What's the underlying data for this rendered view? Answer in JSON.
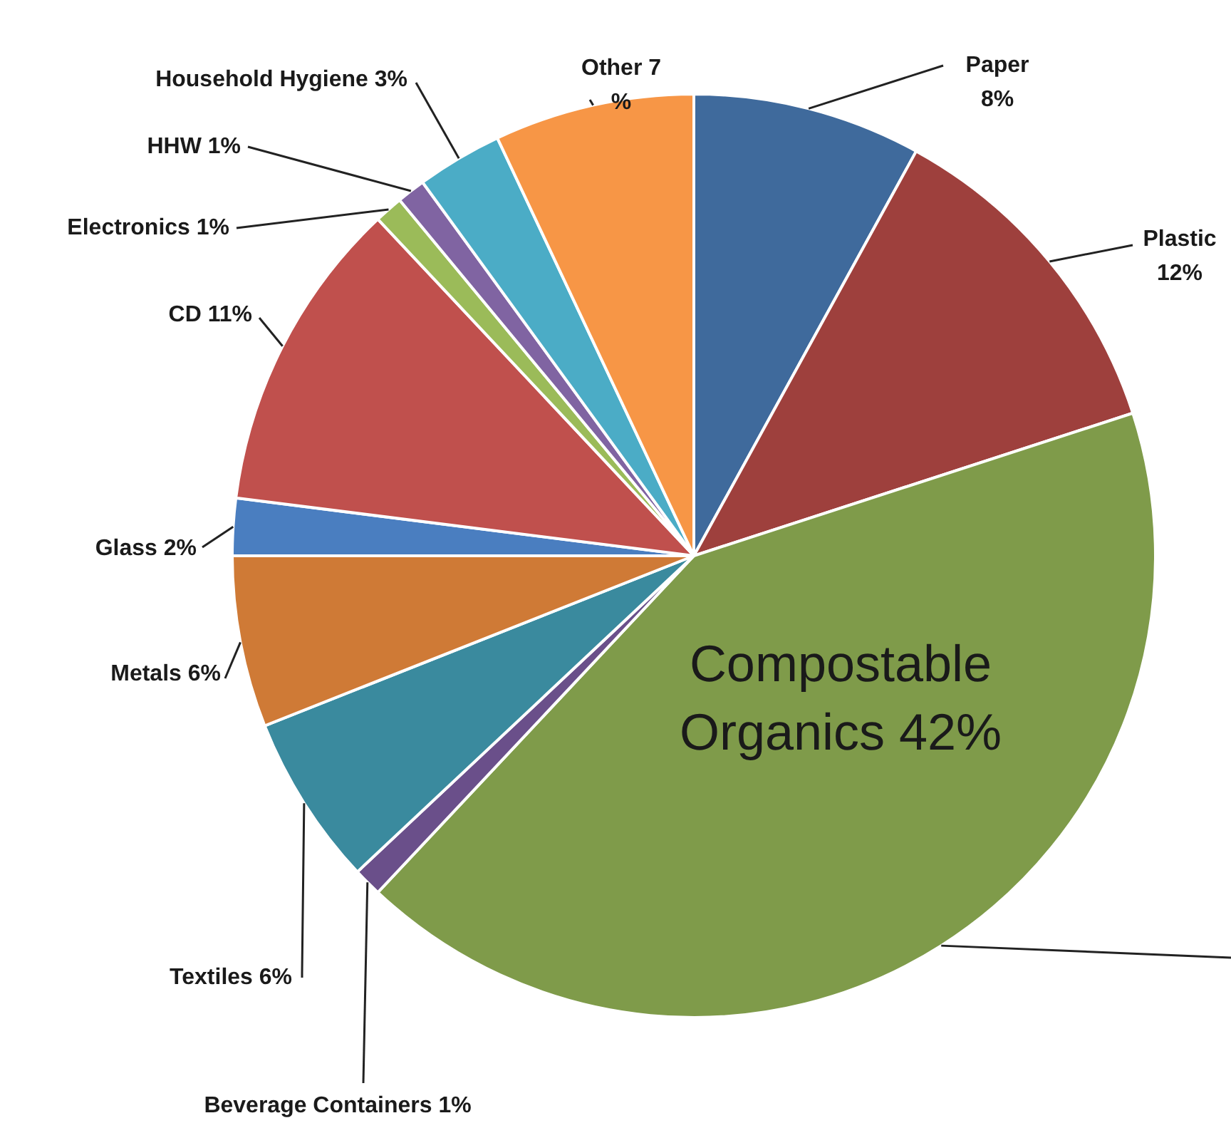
{
  "chart_data": {
    "type": "pie",
    "categories": [
      "Paper",
      "Plastic",
      "Compostable Organics",
      "Beverage Containers",
      "Textiles",
      "Metals",
      "Glass",
      "CD",
      "Electronics",
      "HHW",
      "Household Hygiene",
      "Other"
    ],
    "values": [
      8,
      12,
      42,
      1,
      6,
      6,
      2,
      11,
      1,
      1,
      3,
      7
    ],
    "colors": [
      "#3f6a9c",
      "#9e403d",
      "#7f9b4a",
      "#6a4f8a",
      "#3a8a9e",
      "#cf7a36",
      "#4a7ec0",
      "#c0504d",
      "#9bbb59",
      "#8064a2",
      "#4bacc6",
      "#f79646"
    ],
    "value_labels": [
      "8%",
      "12%",
      "42%",
      "1%",
      "6%",
      "6%",
      "2%",
      "11%",
      "1%",
      "1%",
      "3%",
      "7%"
    ]
  }
}
